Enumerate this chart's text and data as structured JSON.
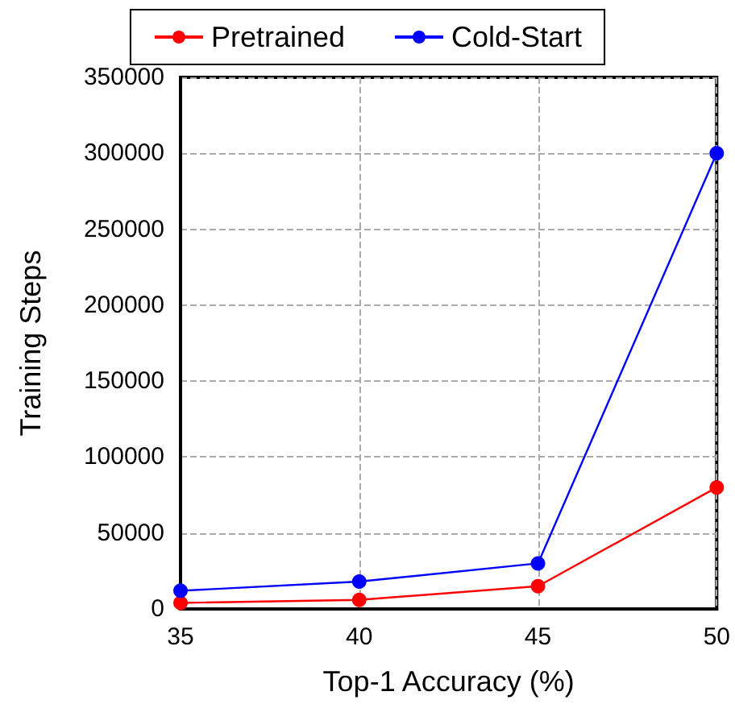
{
  "chart_data": {
    "type": "line",
    "xlabel": "Top-1 Accuracy (%)",
    "ylabel": "Training Steps",
    "x": [
      35,
      40,
      45,
      50
    ],
    "series": [
      {
        "name": "Pretrained",
        "color": "#ff0000",
        "values": [
          4000,
          6000,
          15000,
          80000
        ]
      },
      {
        "name": "Cold-Start",
        "color": "#0000ff",
        "values": [
          12000,
          18000,
          30000,
          300000
        ]
      }
    ],
    "xlim": [
      35,
      50
    ],
    "xticks": [
      35,
      40,
      45,
      50
    ],
    "ylim": [
      0,
      350000
    ],
    "yticks": [
      0,
      50000,
      100000,
      150000,
      200000,
      250000,
      300000,
      350000
    ],
    "grid": true,
    "legend": "top",
    "marker": "circle",
    "line_style": "solid"
  }
}
